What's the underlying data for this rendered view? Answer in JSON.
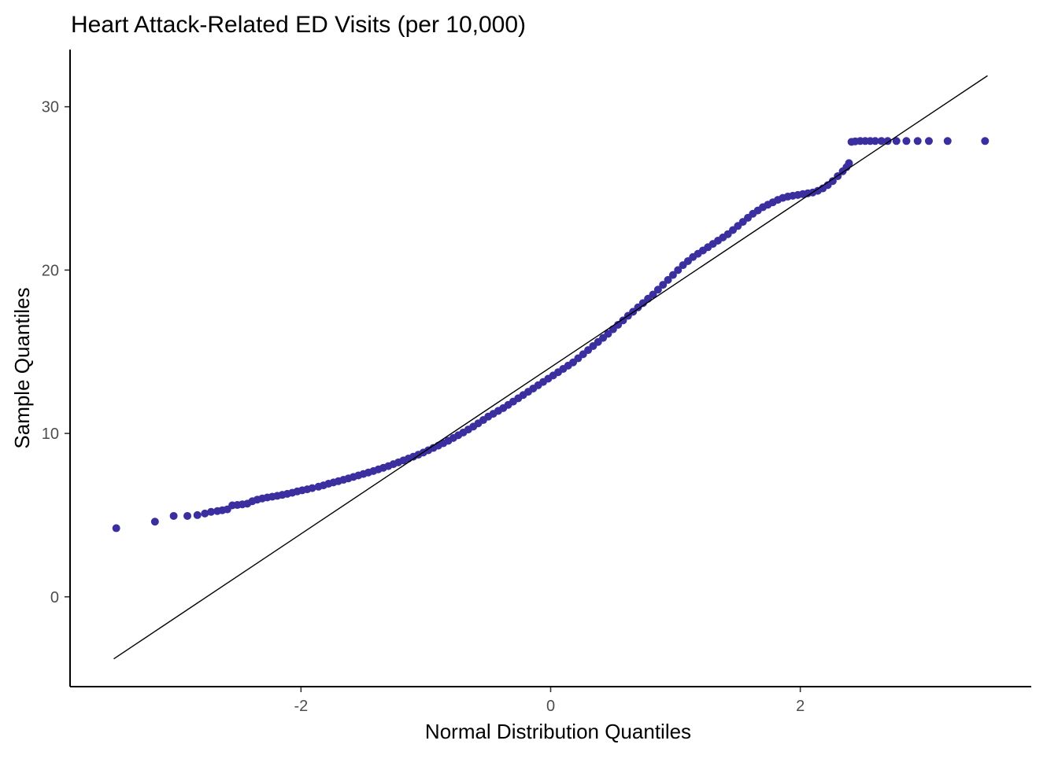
{
  "colors": {
    "point": "#3b2fa0",
    "reference_line": "#000000",
    "axis": "#000000",
    "tick_text": "#4d4d4d",
    "background": "#ffffff"
  },
  "chart_data": {
    "type": "scatter",
    "title": "Heart Attack-Related ED Visits (per 10,000)",
    "xlabel": "Normal Distribution Quantiles",
    "ylabel": "Sample Quantiles",
    "xlim": [
      -3.85,
      3.85
    ],
    "ylim": [
      -5.5,
      33.5
    ],
    "x_ticks": [
      -2,
      0,
      2
    ],
    "x_tick_labels": [
      "-2",
      "0",
      "2"
    ],
    "y_ticks": [
      0,
      10,
      20,
      30
    ],
    "y_tick_labels": [
      "0",
      "10",
      "20",
      "30"
    ],
    "grid": false,
    "legend": "none",
    "reference_line": {
      "x": [
        -3.5,
        3.5
      ],
      "y": [
        -3.8,
        31.9
      ]
    },
    "series": [
      {
        "kind": "points",
        "points": [
          [
            -3.48,
            4.2
          ],
          [
            -3.17,
            4.6
          ],
          [
            -3.02,
            4.95
          ],
          [
            -2.91,
            4.95
          ],
          [
            -2.83,
            5.0
          ],
          [
            -2.77,
            5.1
          ],
          [
            -2.72,
            5.2
          ],
          [
            -2.67,
            5.25
          ],
          [
            -2.63,
            5.3
          ],
          [
            -2.59,
            5.35
          ],
          [
            -2.55,
            5.6
          ],
          [
            -2.51,
            5.62
          ],
          [
            -2.47,
            5.66
          ],
          [
            -2.43,
            5.7
          ],
          [
            -2.39,
            5.85
          ],
          [
            -2.35,
            5.95
          ],
          [
            -2.31,
            6.02
          ],
          [
            -2.27,
            6.08
          ],
          [
            -2.23,
            6.13
          ],
          [
            -2.19,
            6.18
          ],
          [
            -2.15,
            6.24
          ],
          [
            -2.11,
            6.3
          ],
          [
            -2.07,
            6.37
          ],
          [
            -2.03,
            6.45
          ],
          [
            -1.99,
            6.52
          ],
          [
            -1.95,
            6.58
          ],
          [
            -1.91,
            6.65
          ],
          [
            -1.86,
            6.74
          ],
          [
            -1.82,
            6.82
          ],
          [
            -1.78,
            6.92
          ],
          [
            -1.74,
            7.0
          ],
          [
            -1.7,
            7.08
          ],
          [
            -1.66,
            7.16
          ],
          [
            -1.62,
            7.25
          ],
          [
            -1.58,
            7.34
          ],
          [
            -1.54,
            7.43
          ],
          [
            -1.5,
            7.52
          ],
          [
            -1.46,
            7.61
          ],
          [
            -1.42,
            7.7
          ],
          [
            -1.38,
            7.8
          ],
          [
            -1.34,
            7.9
          ],
          [
            -1.3,
            8.0
          ],
          [
            -1.26,
            8.12
          ],
          [
            -1.22,
            8.23
          ],
          [
            -1.18,
            8.35
          ],
          [
            -1.14,
            8.46
          ],
          [
            -1.1,
            8.58
          ],
          [
            -1.06,
            8.7
          ],
          [
            -1.02,
            8.83
          ],
          [
            -0.98,
            8.97
          ],
          [
            -0.94,
            9.11
          ],
          [
            -0.9,
            9.25
          ],
          [
            -0.86,
            9.4
          ],
          [
            -0.82,
            9.55
          ],
          [
            -0.78,
            9.72
          ],
          [
            -0.74,
            9.89
          ],
          [
            -0.7,
            10.06
          ],
          [
            -0.66,
            10.24
          ],
          [
            -0.62,
            10.42
          ],
          [
            -0.58,
            10.62
          ],
          [
            -0.54,
            10.82
          ],
          [
            -0.5,
            11.03
          ],
          [
            -0.46,
            11.2
          ],
          [
            -0.42,
            11.38
          ],
          [
            -0.38,
            11.55
          ],
          [
            -0.34,
            11.75
          ],
          [
            -0.3,
            11.95
          ],
          [
            -0.26,
            12.15
          ],
          [
            -0.22,
            12.35
          ],
          [
            -0.18,
            12.55
          ],
          [
            -0.14,
            12.75
          ],
          [
            -0.1,
            12.95
          ],
          [
            -0.06,
            13.15
          ],
          [
            -0.02,
            13.35
          ],
          [
            0.02,
            13.55
          ],
          [
            0.06,
            13.75
          ],
          [
            0.1,
            13.95
          ],
          [
            0.14,
            14.15
          ],
          [
            0.18,
            14.35
          ],
          [
            0.22,
            14.6
          ],
          [
            0.26,
            14.85
          ],
          [
            0.3,
            15.1
          ],
          [
            0.34,
            15.35
          ],
          [
            0.38,
            15.6
          ],
          [
            0.42,
            15.85
          ],
          [
            0.46,
            16.1
          ],
          [
            0.5,
            16.38
          ],
          [
            0.54,
            16.65
          ],
          [
            0.58,
            16.92
          ],
          [
            0.62,
            17.2
          ],
          [
            0.66,
            17.45
          ],
          [
            0.7,
            17.72
          ],
          [
            0.74,
            17.98
          ],
          [
            0.78,
            18.25
          ],
          [
            0.82,
            18.5
          ],
          [
            0.86,
            18.8
          ],
          [
            0.9,
            19.1
          ],
          [
            0.94,
            19.4
          ],
          [
            0.98,
            19.7
          ],
          [
            1.02,
            20.0
          ],
          [
            1.06,
            20.3
          ],
          [
            1.1,
            20.55
          ],
          [
            1.14,
            20.8
          ],
          [
            1.18,
            21.0
          ],
          [
            1.22,
            21.2
          ],
          [
            1.26,
            21.4
          ],
          [
            1.3,
            21.6
          ],
          [
            1.34,
            21.8
          ],
          [
            1.38,
            22.0
          ],
          [
            1.42,
            22.2
          ],
          [
            1.46,
            22.45
          ],
          [
            1.5,
            22.7
          ],
          [
            1.54,
            22.95
          ],
          [
            1.58,
            23.2
          ],
          [
            1.62,
            23.45
          ],
          [
            1.66,
            23.65
          ],
          [
            1.7,
            23.85
          ],
          [
            1.74,
            24.0
          ],
          [
            1.78,
            24.15
          ],
          [
            1.82,
            24.3
          ],
          [
            1.86,
            24.42
          ],
          [
            1.9,
            24.5
          ],
          [
            1.94,
            24.55
          ],
          [
            1.98,
            24.6
          ],
          [
            2.02,
            24.65
          ],
          [
            2.06,
            24.7
          ],
          [
            2.1,
            24.75
          ],
          [
            2.14,
            24.85
          ],
          [
            2.18,
            25.0
          ],
          [
            2.22,
            25.2
          ],
          [
            2.26,
            25.45
          ],
          [
            2.3,
            25.75
          ],
          [
            2.34,
            26.05
          ],
          [
            2.37,
            26.3
          ],
          [
            2.39,
            26.55
          ],
          [
            2.41,
            27.85
          ],
          [
            2.44,
            27.88
          ],
          [
            2.48,
            27.9
          ],
          [
            2.52,
            27.9
          ],
          [
            2.56,
            27.9
          ],
          [
            2.6,
            27.9
          ],
          [
            2.65,
            27.9
          ],
          [
            2.7,
            27.9
          ],
          [
            2.77,
            27.9
          ],
          [
            2.85,
            27.9
          ],
          [
            2.94,
            27.9
          ],
          [
            3.03,
            27.9
          ],
          [
            3.18,
            27.9
          ],
          [
            3.48,
            27.9
          ]
        ]
      }
    ]
  }
}
